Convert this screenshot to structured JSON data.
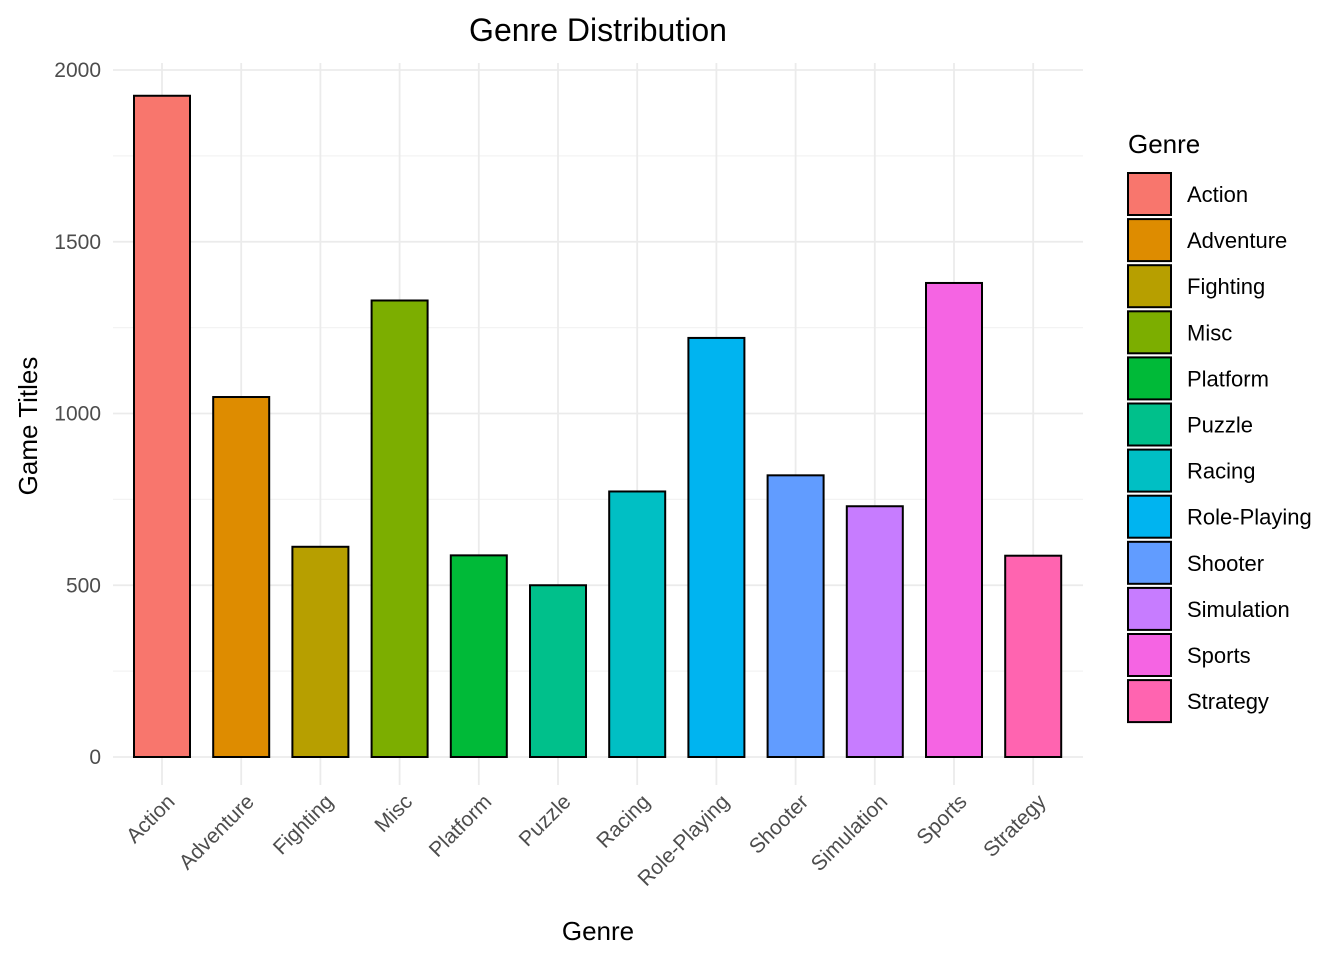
{
  "chart_data": {
    "type": "bar",
    "title": "Genre Distribution",
    "xlabel": "Genre",
    "ylabel": "Game Titles",
    "categories": [
      "Action",
      "Adventure",
      "Fighting",
      "Misc",
      "Platform",
      "Puzzle",
      "Racing",
      "Role-Playing",
      "Shooter",
      "Simulation",
      "Sports",
      "Strategy"
    ],
    "values": [
      1925,
      1048,
      612,
      1329,
      587,
      500,
      773,
      1220,
      820,
      730,
      1380,
      586
    ],
    "colors": [
      "#F8766D",
      "#DE8C00",
      "#B79F00",
      "#7CAE00",
      "#00BA38",
      "#00C08B",
      "#00BFC4",
      "#00B4F0",
      "#619CFF",
      "#C77CFF",
      "#F564E3",
      "#FF64B0"
    ],
    "ylim": [
      0,
      2000
    ],
    "yticks": [
      0,
      500,
      1000,
      1500,
      2000
    ],
    "ytick_labels": [
      "0",
      "500",
      "1000",
      "1500",
      "2000"
    ],
    "grid": true,
    "legend": {
      "title": "Genre",
      "position": "right",
      "entries": [
        "Action",
        "Adventure",
        "Fighting",
        "Misc",
        "Platform",
        "Puzzle",
        "Racing",
        "Role-Playing",
        "Shooter",
        "Simulation",
        "Sports",
        "Strategy"
      ]
    }
  }
}
